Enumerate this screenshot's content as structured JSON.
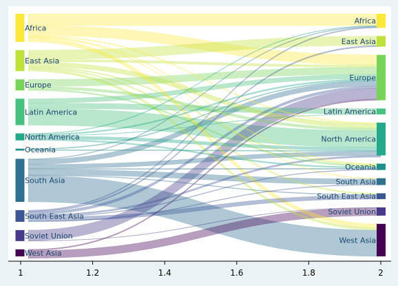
{
  "chart_data": {
    "type": "sankey",
    "title": "",
    "xlabel": "",
    "ylabel": "",
    "x_axis": {
      "range": [
        1,
        2
      ],
      "ticks": [
        "1",
        "1.2",
        "1.4",
        "1.6",
        "1.8",
        "2"
      ]
    },
    "grid": false,
    "legend": "none",
    "left_nodes": [
      {
        "name": "Africa",
        "value": 12.0,
        "color": "#fce83a"
      },
      {
        "name": "East Asia",
        "value": 9.0,
        "color": "#bfe13b"
      },
      {
        "name": "Europe",
        "value": 4.7,
        "color": "#78d35b"
      },
      {
        "name": "Latin America",
        "value": 11.3,
        "color": "#46c17f"
      },
      {
        "name": "North America",
        "value": 3.0,
        "color": "#24a98c"
      },
      {
        "name": "Oceania",
        "value": 0.8,
        "color": "#1f8f8c"
      },
      {
        "name": "South Asia",
        "value": 18.4,
        "color": "#2f6f90"
      },
      {
        "name": "South East Asia",
        "value": 5.0,
        "color": "#3c5595"
      },
      {
        "name": "Soviet Union",
        "value": 4.7,
        "color": "#473a88"
      },
      {
        "name": "West Asia",
        "value": 3.0,
        "color": "#440154"
      }
    ],
    "right_nodes": [
      {
        "name": "Africa",
        "value": 6.0,
        "color": "#fce83a"
      },
      {
        "name": "East Asia",
        "value": 4.5,
        "color": "#bfe13b"
      },
      {
        "name": "Europe",
        "value": 19.4,
        "color": "#78d35b"
      },
      {
        "name": "Latin America",
        "value": 2.5,
        "color": "#46c17f"
      },
      {
        "name": "North America",
        "value": 14.0,
        "color": "#24a98c"
      },
      {
        "name": "Oceania",
        "value": 2.7,
        "color": "#1f8f8c"
      },
      {
        "name": "South Asia",
        "value": 2.9,
        "color": "#2f6f90"
      },
      {
        "name": "South East Asia",
        "value": 2.5,
        "color": "#3c5595"
      },
      {
        "name": "Soviet Union",
        "value": 3.5,
        "color": "#473a88"
      },
      {
        "name": "West Asia",
        "value": 13.9,
        "color": "#440154"
      }
    ],
    "flows": [
      {
        "source": "Africa",
        "target": "Africa",
        "value": 5.0
      },
      {
        "source": "Africa",
        "target": "Europe",
        "value": 4.3
      },
      {
        "source": "Africa",
        "target": "North America",
        "value": 0.4
      },
      {
        "source": "Africa",
        "target": "Oceania",
        "value": 0.3
      },
      {
        "source": "Africa",
        "target": "South Asia",
        "value": 0.3
      },
      {
        "source": "Africa",
        "target": "West Asia",
        "value": 1.7
      },
      {
        "source": "East Asia",
        "target": "East Asia",
        "value": 4.0
      },
      {
        "source": "East Asia",
        "target": "Europe",
        "value": 1.0
      },
      {
        "source": "East Asia",
        "target": "North America",
        "value": 2.0
      },
      {
        "source": "East Asia",
        "target": "Oceania",
        "value": 0.5
      },
      {
        "source": "East Asia",
        "target": "South East Asia",
        "value": 0.5
      },
      {
        "source": "East Asia",
        "target": "West Asia",
        "value": 1.0
      },
      {
        "source": "Europe",
        "target": "Europe",
        "value": 3.0
      },
      {
        "source": "Europe",
        "target": "North America",
        "value": 1.1
      },
      {
        "source": "Europe",
        "target": "Oceania",
        "value": 0.6
      },
      {
        "source": "Latin America",
        "target": "Europe",
        "value": 1.9
      },
      {
        "source": "Latin America",
        "target": "Latin America",
        "value": 2.3
      },
      {
        "source": "Latin America",
        "target": "North America",
        "value": 7.1
      },
      {
        "source": "North America",
        "target": "Africa",
        "value": 0.3
      },
      {
        "source": "North America",
        "target": "Europe",
        "value": 0.6
      },
      {
        "source": "North America",
        "target": "Latin America",
        "value": 0.2
      },
      {
        "source": "North America",
        "target": "North America",
        "value": 1.3
      },
      {
        "source": "North America",
        "target": "Oceania",
        "value": 0.6
      },
      {
        "source": "Oceania",
        "target": "Europe",
        "value": 0.4
      },
      {
        "source": "Oceania",
        "target": "North America",
        "value": 0.4
      },
      {
        "source": "South Asia",
        "target": "Africa",
        "value": 0.3
      },
      {
        "source": "South Asia",
        "target": "Europe",
        "value": 2.1
      },
      {
        "source": "South Asia",
        "target": "North America",
        "value": 1.8
      },
      {
        "source": "South Asia",
        "target": "Oceania",
        "value": 0.4
      },
      {
        "source": "South Asia",
        "target": "South Asia",
        "value": 2.3
      },
      {
        "source": "South Asia",
        "target": "South East Asia",
        "value": 0.3
      },
      {
        "source": "South Asia",
        "target": "West Asia",
        "value": 11.2
      },
      {
        "source": "South East Asia",
        "target": "Africa",
        "value": 0.4
      },
      {
        "source": "South East Asia",
        "target": "East Asia",
        "value": 0.5
      },
      {
        "source": "South East Asia",
        "target": "Europe",
        "value": 1.1
      },
      {
        "source": "South East Asia",
        "target": "North America",
        "value": 0.7
      },
      {
        "source": "South East Asia",
        "target": "Oceania",
        "value": 0.3
      },
      {
        "source": "South East Asia",
        "target": "South East Asia",
        "value": 1.7
      },
      {
        "source": "South East Asia",
        "target": "South Asia",
        "value": 0.3
      },
      {
        "source": "Soviet Union",
        "target": "Europe",
        "value": 4.5
      },
      {
        "source": "Soviet Union",
        "target": "Soviet Union",
        "value": 0.2
      },
      {
        "source": "West Asia",
        "target": "Europe",
        "value": 0.5
      },
      {
        "source": "West Asia",
        "target": "Soviet Union",
        "value": 3.3
      },
      {
        "source": "West Asia",
        "target": "West Asia",
        "value": 0.0
      }
    ]
  }
}
